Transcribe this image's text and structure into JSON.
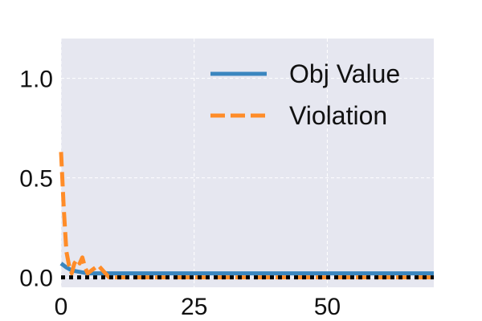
{
  "chart_data": {
    "type": "line",
    "title": "",
    "xlabel": "",
    "ylabel": "",
    "xlim": [
      0,
      70
    ],
    "ylim": [
      -0.05,
      1.2
    ],
    "grid": true,
    "legend_position": "top-right",
    "x_ticks": [
      {
        "value": 0,
        "label": "0"
      },
      {
        "value": 25,
        "label": "25"
      },
      {
        "value": 50,
        "label": "50"
      }
    ],
    "y_ticks": [
      {
        "value": 0.0,
        "label": "0.0"
      },
      {
        "value": 0.5,
        "label": "0.5"
      },
      {
        "value": 1.0,
        "label": "1.0"
      }
    ],
    "reference_line": {
      "y": 0.0,
      "color": "#000000",
      "style": "dotted"
    },
    "series": [
      {
        "name": "Obj Value",
        "color": "#3a86bf",
        "dash": "solid",
        "x": [
          0,
          1,
          2,
          3,
          4,
          5,
          6,
          7,
          8,
          10,
          20,
          30,
          40,
          50,
          60,
          70
        ],
        "y": [
          0.07,
          0.05,
          0.035,
          0.03,
          0.025,
          0.02,
          0.02,
          0.02,
          0.02,
          0.02,
          0.02,
          0.02,
          0.02,
          0.02,
          0.02,
          0.02
        ]
      },
      {
        "name": "Violation",
        "color": "#ff8c28",
        "dash": "dashed",
        "x": [
          0,
          0.5,
          1,
          1.5,
          2,
          2.5,
          3,
          3.5,
          4,
          4.5,
          5,
          6,
          7,
          8,
          9,
          10,
          20,
          30,
          40,
          50,
          60,
          70
        ],
        "y": [
          0.63,
          0.35,
          0.13,
          0.06,
          0.02,
          0.07,
          0.09,
          0.07,
          0.1,
          0.05,
          0.02,
          0.04,
          0.06,
          0.03,
          0.0,
          0.0,
          0.0,
          0.0,
          0.0,
          0.0,
          0.0,
          0.0
        ]
      }
    ]
  }
}
